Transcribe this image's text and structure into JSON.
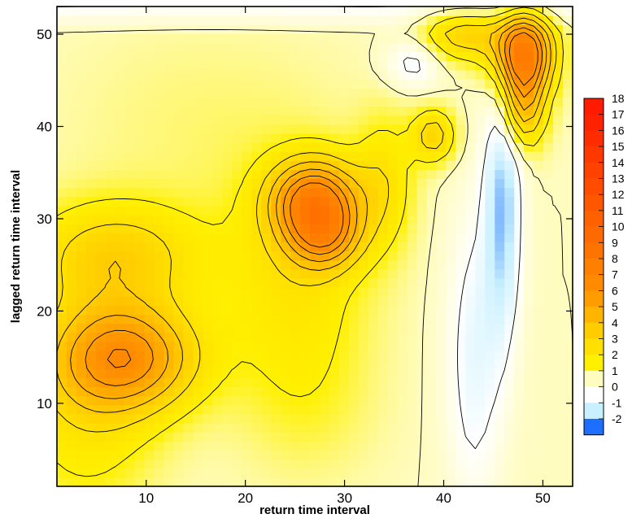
{
  "chart_data": {
    "type": "heatmap",
    "title": "",
    "xlabel": "return time interval",
    "ylabel": "lagged return time interval",
    "xlim": [
      1,
      53
    ],
    "ylim": [
      1,
      53
    ],
    "xticks": [
      10,
      20,
      30,
      40,
      50
    ],
    "yticks": [
      10,
      20,
      30,
      40,
      50
    ],
    "colorbar": {
      "placement": "right",
      "levels": [
        18,
        17,
        16,
        15,
        14,
        13,
        12,
        11,
        10,
        9,
        8,
        7,
        6,
        5,
        4,
        3,
        2,
        1,
        0,
        -1,
        -2
      ],
      "colors": {
        "18": "#ff1a00",
        "17": "#ff2200",
        "16": "#ff2d00",
        "15": "#ff3800",
        "14": "#ff4200",
        "13": "#ff4c00",
        "12": "#ff5600",
        "11": "#ff6000",
        "10": "#ff6a00",
        "9": "#ff7400",
        "8": "#ff7f00",
        "7": "#ff8a00",
        "6": "#ff9d00",
        "5": "#ffb400",
        "4": "#ffcc00",
        "3": "#ffe000",
        "2": "#fff000",
        "1": "#fffcc0",
        "0": "#ffffff",
        "-1": "#c8f0ff",
        "-2": "#1e6eff"
      }
    },
    "features": [
      {
        "x": 8,
        "y": 15,
        "value": 5.5,
        "sx": 5.0,
        "sy": 4.0
      },
      {
        "x": 7,
        "y": 26,
        "value": 3.0,
        "sx": 6.0,
        "sy": 4.0
      },
      {
        "x": 4,
        "y": 10,
        "value": 2.0,
        "sx": 5.0,
        "sy": 8.0
      },
      {
        "x": 27,
        "y": 32,
        "value": 6.5,
        "sx": 3.0,
        "sy": 3.0
      },
      {
        "x": 28,
        "y": 28,
        "value": 4.0,
        "sx": 2.5,
        "sy": 2.5
      },
      {
        "x": 25,
        "y": 24,
        "value": 2.0,
        "sx": 5.0,
        "sy": 8.0
      },
      {
        "x": 48,
        "y": 48,
        "value": 8.0,
        "sx": 2.0,
        "sy": 3.0
      },
      {
        "x": 48,
        "y": 42,
        "value": 4.0,
        "sx": 1.5,
        "sy": 3.0
      },
      {
        "x": 42,
        "y": 50,
        "value": 3.0,
        "sx": 3.0,
        "sy": 2.0
      },
      {
        "x": 39,
        "y": 39,
        "value": 3.0,
        "sx": 1.5,
        "sy": 2.0
      },
      {
        "x": 46,
        "y": 32,
        "value": -2.0,
        "sx": 1.3,
        "sy": 11.0
      },
      {
        "x": 43,
        "y": 15,
        "value": -1.0,
        "sx": 2.0,
        "sy": 12.0
      },
      {
        "x": 37,
        "y": 47,
        "value": -1.0,
        "sx": 2.0,
        "sy": 2.0
      },
      {
        "x": 34,
        "y": 34,
        "value": 2.0,
        "sx": 2.0,
        "sy": 5.0
      },
      {
        "x": 16,
        "y": 40,
        "value": 0.8,
        "sx": 10.0,
        "sy": 8.0
      },
      {
        "x": 26,
        "y": 10,
        "value": 1.0,
        "sx": 5.0,
        "sy": 6.0
      }
    ],
    "base_value": 1.0
  }
}
